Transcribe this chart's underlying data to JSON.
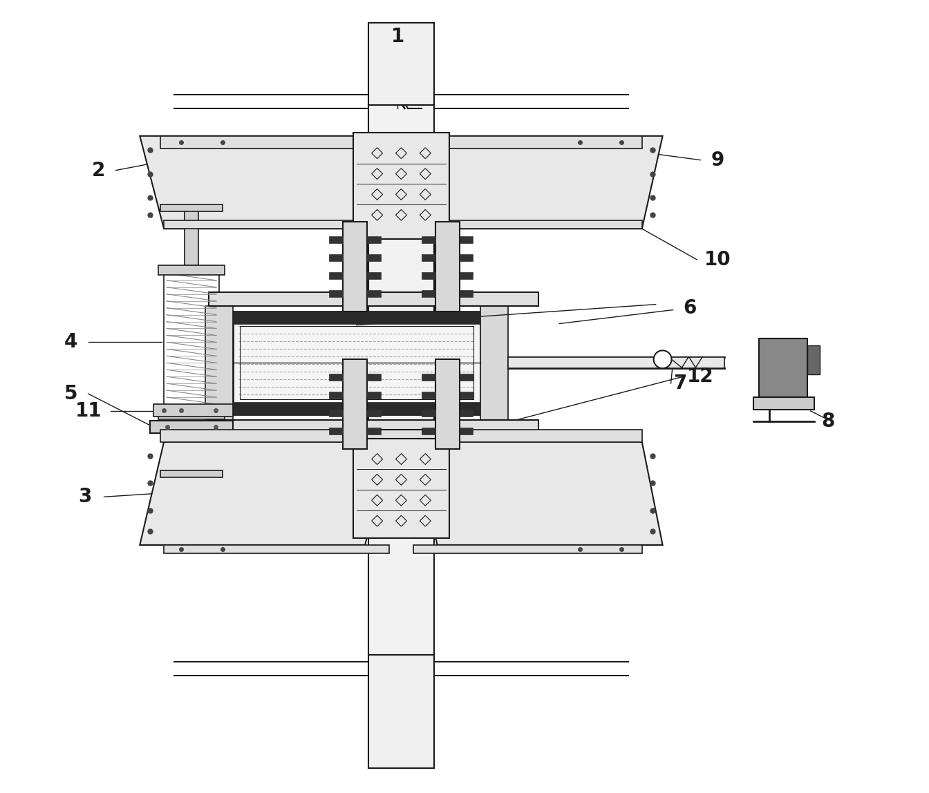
{
  "bg_color": "#ffffff",
  "lc": "#1a1a1a",
  "label_fs": 20,
  "figsize": [
    13.44,
    11.48
  ],
  "dpi": 100
}
